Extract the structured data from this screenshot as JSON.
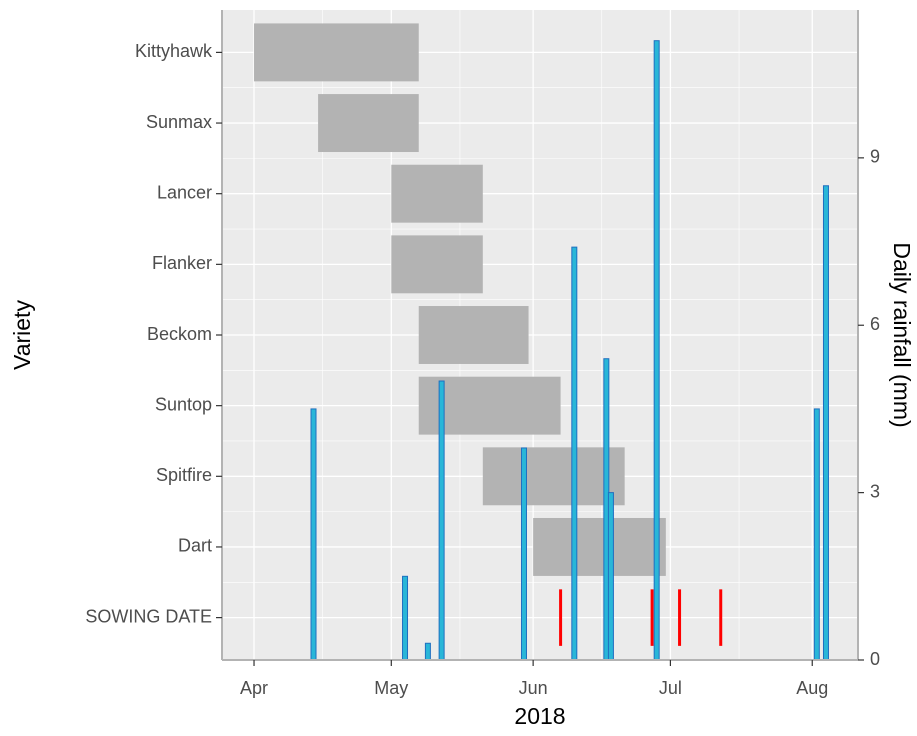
{
  "chart_data": {
    "type": "gantt",
    "x_label": "2018",
    "y_label": "Variety",
    "y2_label": "Daily rainfall (mm)",
    "categories": [
      "Kittyhawk",
      "Sunmax",
      "Lancer",
      "Flanker",
      "Beckom",
      "Suntop",
      "Spitfire",
      "Dart",
      "SOWING DATE"
    ],
    "xlim": [
      "2018-03-25",
      "2018-08-11"
    ],
    "xticks": [
      {
        "value": "2018-04-01",
        "label": "Apr"
      },
      {
        "value": "2018-05-01",
        "label": "May"
      },
      {
        "value": "2018-06-01",
        "label": "Jun"
      },
      {
        "value": "2018-07-01",
        "label": "Jul"
      },
      {
        "value": "2018-08-01",
        "label": "Aug"
      }
    ],
    "windows": {
      "color": "#b3b3b3",
      "start": [
        "2018-04-01",
        "2018-04-15",
        "2018-05-01",
        "2018-05-01",
        "2018-05-07",
        "2018-05-07",
        "2018-05-21",
        "2018-06-01",
        null
      ],
      "end": [
        "2018-05-07",
        "2018-05-07",
        "2018-05-21",
        "2018-05-21",
        "2018-05-31",
        "2018-06-07",
        "2018-06-21",
        "2018-06-30",
        null
      ]
    },
    "sowing_dates": [
      "2018-06-07",
      "2018-06-27",
      "2018-07-03",
      "2018-07-12"
    ],
    "sowing_color": "#ff0000",
    "rainfall": {
      "color": "#29b6d8",
      "edge": "#1f6fc0",
      "dates": [
        "2018-04-14",
        "2018-05-04",
        "2018-05-09",
        "2018-05-12",
        "2018-05-30",
        "2018-06-10",
        "2018-06-17",
        "2018-06-18",
        "2018-06-28",
        "2018-08-02",
        "2018-08-04"
      ],
      "values": [
        4.5,
        1.5,
        0.3,
        5.0,
        3.8,
        7.4,
        5.4,
        3.0,
        11.1,
        4.5,
        8.5
      ]
    },
    "y2lim": [
      0,
      11.65
    ],
    "y2ticks": [
      0,
      3,
      6,
      9
    ],
    "grid": true
  }
}
